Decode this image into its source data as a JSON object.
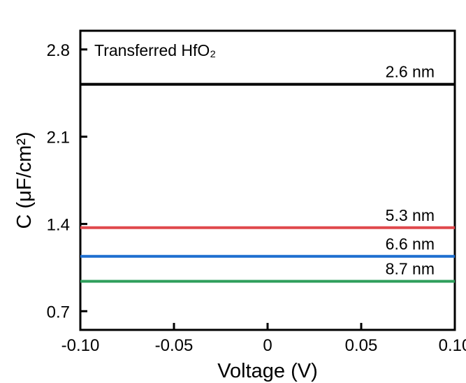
{
  "chart_data": {
    "type": "line",
    "title": "",
    "xlabel": "Voltage (V)",
    "ylabel": "C (μF/cm²)",
    "annotation": "Transferred HfO₂",
    "xlim": [
      -0.1,
      0.1
    ],
    "ylim": [
      0.55,
      2.95
    ],
    "x_ticks": [
      -0.1,
      -0.05,
      0,
      0.05,
      0.1
    ],
    "x_tick_labels": [
      "-0.10",
      "-0.05",
      "0",
      "0.05",
      "0.10"
    ],
    "y_ticks": [
      0.7,
      1.4,
      2.1,
      2.8
    ],
    "y_tick_labels": [
      "0.7",
      "1.4",
      "2.1",
      "2.8"
    ],
    "grid": false,
    "series": [
      {
        "name": "2.6 nm",
        "color": "#000000",
        "x": [
          -0.1,
          0.1
        ],
        "values": [
          2.52,
          2.52
        ]
      },
      {
        "name": "5.3 nm",
        "color": "#e0484c",
        "x": [
          -0.1,
          0.1
        ],
        "values": [
          1.37,
          1.37
        ]
      },
      {
        "name": "6.6 nm",
        "color": "#1e6fd0",
        "x": [
          -0.1,
          0.1
        ],
        "values": [
          1.14,
          1.14
        ]
      },
      {
        "name": "8.7 nm",
        "color": "#2e9e5b",
        "x": [
          -0.1,
          0.1
        ],
        "values": [
          0.94,
          0.94
        ]
      }
    ]
  }
}
